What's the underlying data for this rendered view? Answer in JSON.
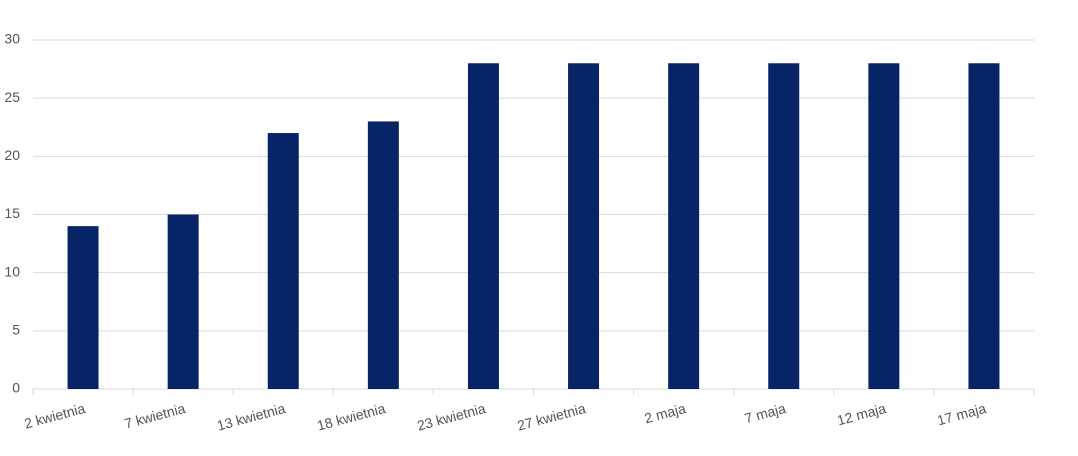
{
  "chart_data": {
    "type": "bar",
    "categories": [
      "2 kwietnia",
      "7 kwietnia",
      "13 kwietnia",
      "18 kwietnia",
      "23 kwietnia",
      "27 kwietnia",
      "2 maja",
      "7 maja",
      "12 maja",
      "17 maja"
    ],
    "values": [
      14,
      15,
      22,
      23,
      28,
      28,
      28,
      28,
      28,
      28
    ],
    "color": "#072466",
    "ylim": [
      0,
      30
    ],
    "yticks": [
      0,
      5,
      10,
      15,
      20,
      25,
      30
    ],
    "grid": true
  }
}
